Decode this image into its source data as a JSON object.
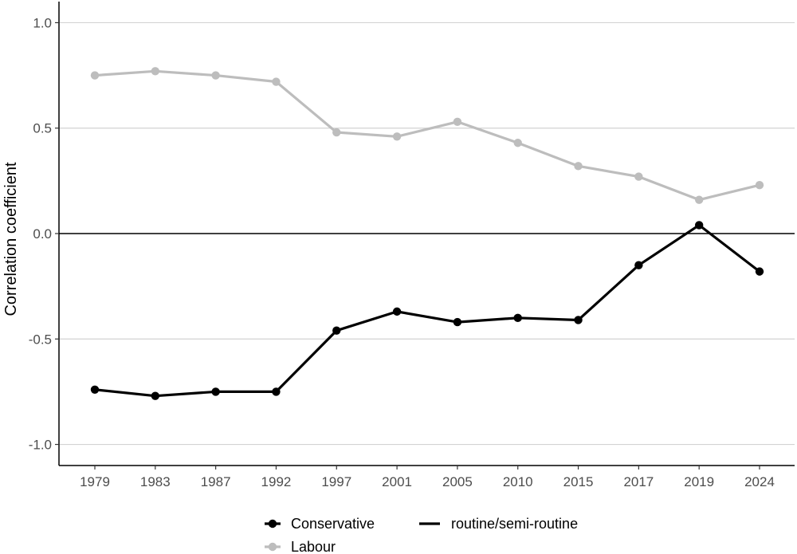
{
  "chart_data": {
    "type": "line",
    "xlabel": "",
    "ylabel": "Correlation coefficient",
    "categories": [
      "1979",
      "1983",
      "1987",
      "1992",
      "1997",
      "2001",
      "2005",
      "2010",
      "2015",
      "2017",
      "2019",
      "2024"
    ],
    "ylim": [
      -1.1,
      1.1
    ],
    "yticks": [
      {
        "value": 1.0,
        "label": "1.0"
      },
      {
        "value": 0.5,
        "label": "0.5"
      },
      {
        "value": 0.0,
        "label": "0.0"
      },
      {
        "value": -0.5,
        "label": "-0.5"
      },
      {
        "value": -1.0,
        "label": "-1.0"
      }
    ],
    "grid": "horizontal major gridlines",
    "reference_line": 0,
    "series": [
      {
        "name": "Labour",
        "color": "#bdbdbd",
        "values": [
          0.75,
          0.77,
          0.75,
          0.72,
          0.48,
          0.46,
          0.53,
          0.43,
          0.32,
          0.27,
          0.16,
          0.23
        ]
      },
      {
        "name": "Conservative",
        "color": "#000000",
        "values": [
          -0.74,
          -0.77,
          -0.75,
          -0.75,
          -0.46,
          -0.37,
          -0.42,
          -0.4,
          -0.41,
          -0.15,
          0.04,
          -0.18
        ]
      }
    ],
    "legend": {
      "position": "bottom",
      "party_entries": [
        {
          "label": "Conservative",
          "color": "#000000"
        },
        {
          "label": "Labour",
          "color": "#bdbdbd"
        }
      ],
      "class_entries": [
        {
          "label": "routine/semi-routine",
          "color": "#000000"
        }
      ]
    }
  }
}
